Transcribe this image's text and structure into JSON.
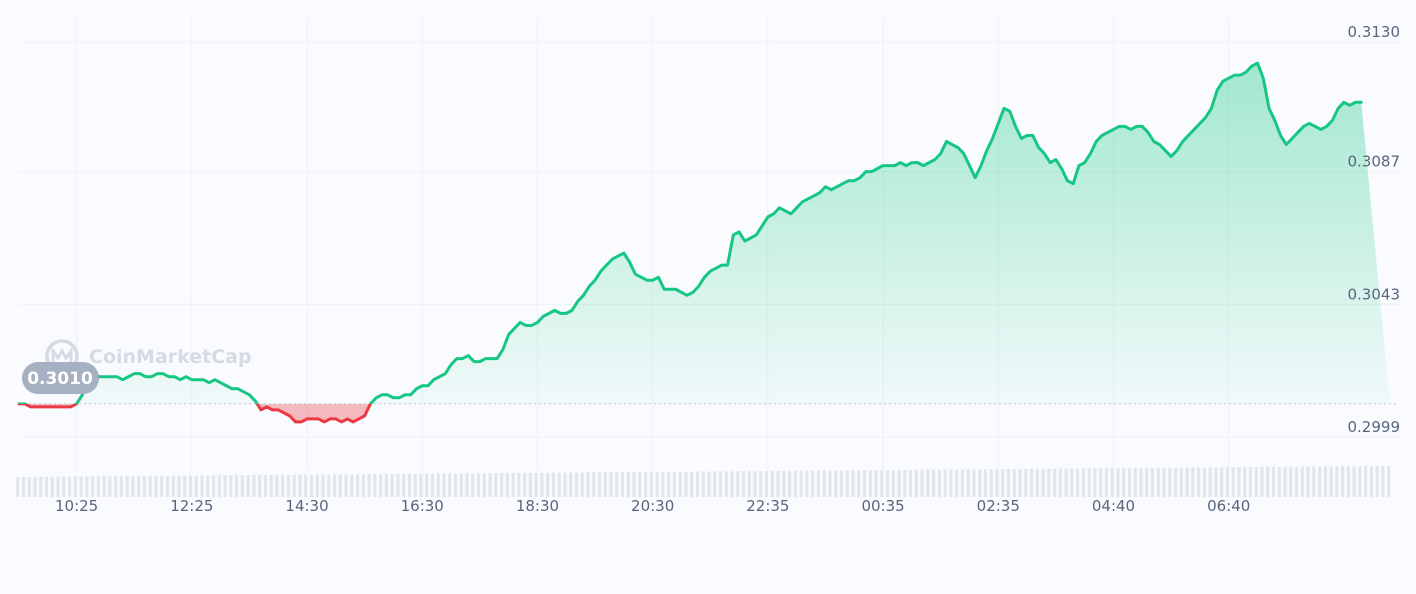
{
  "chart_data": {
    "type": "area",
    "watermark": "CoinMarketCap",
    "baseline_value": 0.301,
    "baseline_label": "0.3010",
    "ylim": [
      0.2988,
      0.3134
    ],
    "y_ticks": [
      {
        "value": 0.313,
        "label": "0.3130"
      },
      {
        "value": 0.3087,
        "label": "0.3087"
      },
      {
        "value": 0.3043,
        "label": "0.3043"
      },
      {
        "value": 0.2999,
        "label": "0.2999"
      }
    ],
    "x_ticks": [
      "10:25",
      "12:25",
      "14:30",
      "16:30",
      "18:30",
      "20:30",
      "22:35",
      "00:35",
      "02:35",
      "04:40",
      "06:40"
    ],
    "x_tick_index": [
      10,
      30,
      50,
      70,
      90,
      110,
      130,
      150,
      170,
      190,
      210
    ],
    "x_count": 239,
    "up_color": "#16c784",
    "down_color": "#ea3943",
    "grid": true,
    "series": [
      {
        "values": [
          0.301,
          0.301,
          0.3009,
          0.3009,
          0.3009,
          0.3009,
          0.3009,
          0.3009,
          0.3009,
          0.3009,
          0.301,
          0.3013,
          0.302,
          0.302,
          0.3019,
          0.3019,
          0.3019,
          0.3019,
          0.3018,
          0.3019,
          0.302,
          0.302,
          0.3019,
          0.3019,
          0.302,
          0.302,
          0.3019,
          0.3019,
          0.3018,
          0.3019,
          0.3018,
          0.3018,
          0.3018,
          0.3017,
          0.3018,
          0.3017,
          0.3016,
          0.3015,
          0.3015,
          0.3014,
          0.3013,
          0.3011,
          0.3008,
          0.3009,
          0.3008,
          0.3008,
          0.3007,
          0.3006,
          0.3004,
          0.3004,
          0.3005,
          0.3005,
          0.3005,
          0.3004,
          0.3005,
          0.3005,
          0.3004,
          0.3005,
          0.3004,
          0.3005,
          0.3006,
          0.301,
          0.3012,
          0.3013,
          0.3013,
          0.3012,
          0.3012,
          0.3013,
          0.3013,
          0.3015,
          0.3016,
          0.3016,
          0.3018,
          0.3019,
          0.302,
          0.3023,
          0.3025,
          0.3025,
          0.3026,
          0.3024,
          0.3024,
          0.3025,
          0.3025,
          0.3025,
          0.3028,
          0.3033,
          0.3035,
          0.3037,
          0.3036,
          0.3036,
          0.3037,
          0.3039,
          0.304,
          0.3041,
          0.304,
          0.304,
          0.3041,
          0.3044,
          0.3046,
          0.3049,
          0.3051,
          0.3054,
          0.3056,
          0.3058,
          0.3059,
          0.306,
          0.3057,
          0.3053,
          0.3052,
          0.3051,
          0.3051,
          0.3052,
          0.3048,
          0.3048,
          0.3048,
          0.3047,
          0.3046,
          0.3047,
          0.3049,
          0.3052,
          0.3054,
          0.3055,
          0.3056,
          0.3056,
          0.3066,
          0.3067,
          0.3064,
          0.3065,
          0.3066,
          0.3069,
          0.3072,
          0.3073,
          0.3075,
          0.3074,
          0.3073,
          0.3075,
          0.3077,
          0.3078,
          0.3079,
          0.308,
          0.3082,
          0.3081,
          0.3082,
          0.3083,
          0.3084,
          0.3084,
          0.3085,
          0.3087,
          0.3087,
          0.3088,
          0.3089,
          0.3089,
          0.3089,
          0.309,
          0.3089,
          0.309,
          0.309,
          0.3089,
          0.309,
          0.3091,
          0.3093,
          0.3097,
          0.3096,
          0.3095,
          0.3093,
          0.3089,
          0.3085,
          0.3089,
          0.3094,
          0.3098,
          0.3103,
          0.3108,
          0.3107,
          0.3102,
          0.3098,
          0.3099,
          0.3099,
          0.3095,
          0.3093,
          0.309,
          0.3091,
          0.3088,
          0.3084,
          0.3083,
          0.3089,
          0.309,
          0.3093,
          0.3097,
          0.3099,
          0.31,
          0.3101,
          0.3102,
          0.3102,
          0.3101,
          0.3102,
          0.3102,
          0.31,
          0.3097,
          0.3096,
          0.3094,
          0.3092,
          0.3094,
          0.3097,
          0.3099,
          0.3101,
          0.3103,
          0.3105,
          0.3108,
          0.3114,
          0.3117,
          0.3118,
          0.3119,
          0.3119,
          0.312,
          0.3122,
          0.3123,
          0.3118,
          0.3108,
          0.3104,
          0.3099,
          0.3096,
          0.3098,
          0.31,
          0.3102,
          0.3103,
          0.3102,
          0.3101,
          0.3102,
          0.3104,
          0.3108,
          0.311,
          0.3109,
          0.311,
          0.311
        ]
      }
    ]
  }
}
